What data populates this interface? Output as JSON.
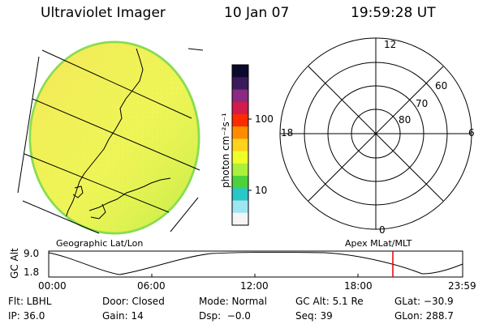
{
  "header": {
    "instrument": "Ultraviolet Imager",
    "date": "10 Jan 07",
    "time": "19:59:28 UT"
  },
  "colorbar": {
    "unit_label": "photon cm⁻²s⁻¹",
    "ticks": [
      "100",
      "10"
    ],
    "colors": [
      "#0a0a2e",
      "#3a1a5a",
      "#8a2a80",
      "#d21c4c",
      "#ff2a00",
      "#ff8c00",
      "#ffd21e",
      "#f0ff28",
      "#aaf03c",
      "#4bd23c",
      "#28c8c8",
      "#a0e6f0",
      "#f5f5f5"
    ]
  },
  "left_panel": {
    "caption": "Geographic Lat/Lon",
    "fill_color": "#eef556",
    "edge_color": "#8ce050"
  },
  "right_panel": {
    "caption": "Apex MLat/MLT",
    "mlt_labels": {
      "top": "12",
      "left": "18",
      "right": "6",
      "bottom": "0"
    },
    "lat_labels": [
      "60",
      "70",
      "80"
    ]
  },
  "timeline": {
    "ylabel": "GC Alt",
    "ymax_label": "9.0",
    "ymin_label": "1.8",
    "time_labels": [
      "00:00",
      "06:00",
      "12:00",
      "18:00",
      "23:59"
    ],
    "marker_color": "#e00000"
  },
  "status": {
    "flt": "Flt: LBHL",
    "door": "Door: Closed",
    "mode": "Mode: Normal",
    "gcalt": "GC Alt: 5.1 Re",
    "glat": "GLat: −30.9",
    "ip": "IP: 36.0",
    "gain": "Gain: 14",
    "dsp": "Dsp:  −0.0",
    "seq": "Seq: 39",
    "glon": "GLon: 288.7"
  }
}
